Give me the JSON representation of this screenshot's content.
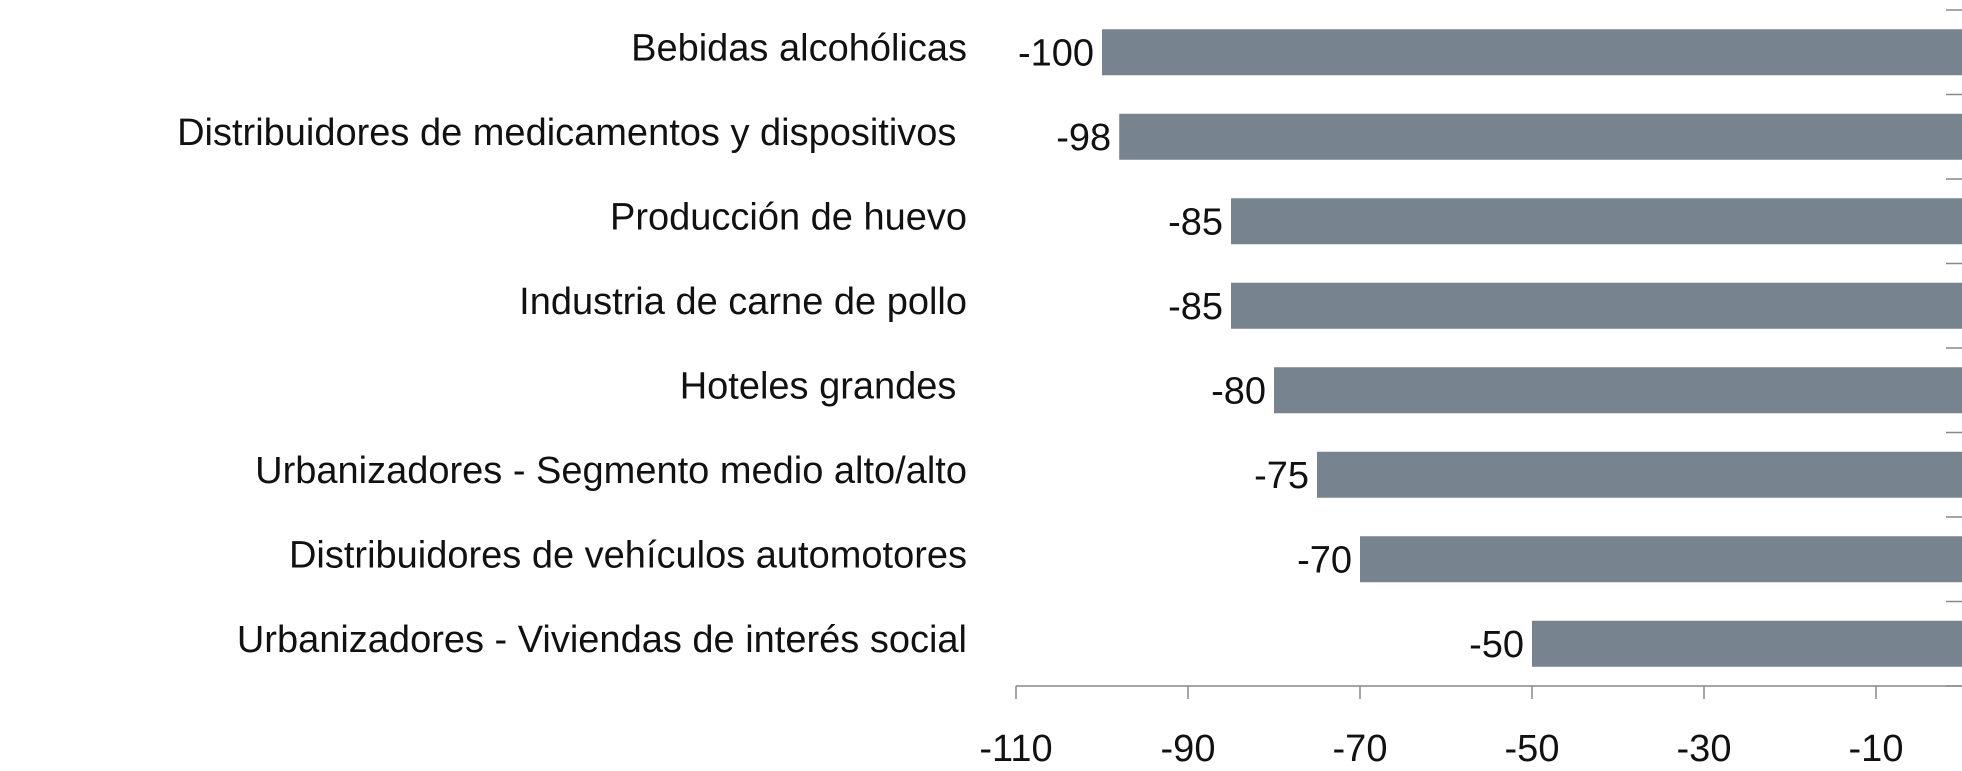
{
  "chart_data": {
    "type": "bar",
    "orientation": "horizontal",
    "categories": [
      "Bebidas alcohólicas",
      "Distribuidores de medicamentos y dispositivos ",
      "Producción de huevo",
      "Industria de carne de pollo",
      "Hoteles grandes ",
      "Urbanizadores - Segmento medio alto/alto",
      "Distribuidores de vehículos automotores",
      "Urbanizadores - Viviendas de interés social"
    ],
    "values": [
      -100,
      -98,
      -85,
      -85,
      -80,
      -75,
      -70,
      -50
    ],
    "color": "#77838f",
    "xlim": [
      -110,
      0
    ],
    "xticks": [
      -110,
      -90,
      -70,
      -50,
      -30,
      -10
    ]
  }
}
